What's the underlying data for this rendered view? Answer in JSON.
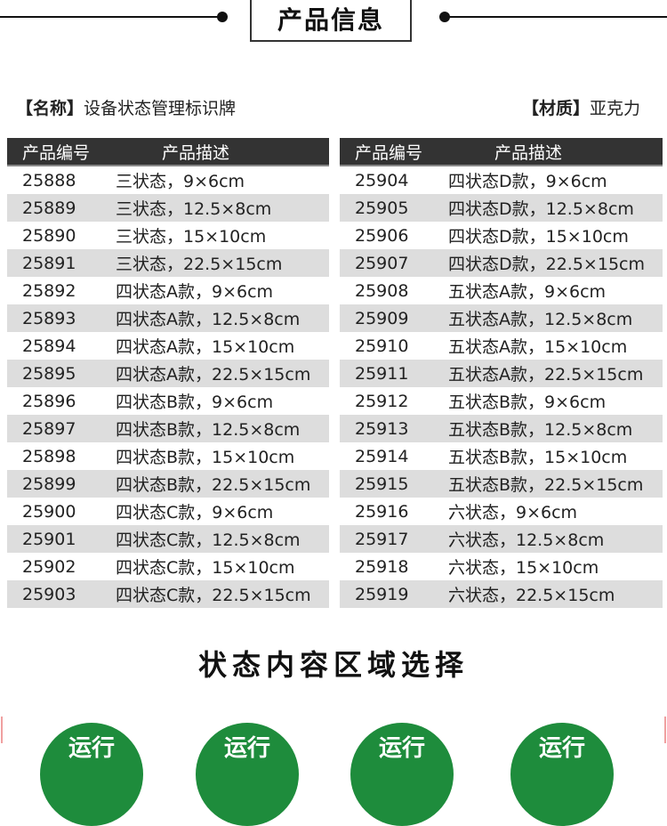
{
  "header": {
    "title": "产品信息"
  },
  "meta": {
    "name_label": "【名称】",
    "name_value": "设备状态管理标识牌",
    "material_label": "【材质】",
    "material_value": "亚克力"
  },
  "table": {
    "col_code": "产品编号",
    "col_desc": "产品描述",
    "left": [
      [
        "25888",
        "三状态，9×6cm"
      ],
      [
        "25889",
        "三状态，12.5×8cm"
      ],
      [
        "25890",
        "三状态，15×10cm"
      ],
      [
        "25891",
        "三状态，22.5×15cm"
      ],
      [
        "25892",
        "四状态A款，9×6cm"
      ],
      [
        "25893",
        "四状态A款，12.5×8cm"
      ],
      [
        "25894",
        "四状态A款，15×10cm"
      ],
      [
        "25895",
        "四状态A款，22.5×15cm"
      ],
      [
        "25896",
        "四状态B款，9×6cm"
      ],
      [
        "25897",
        "四状态B款，12.5×8cm"
      ],
      [
        "25898",
        "四状态B款，15×10cm"
      ],
      [
        "25899",
        "四状态B款，22.5×15cm"
      ],
      [
        "25900",
        "四状态C款，9×6cm"
      ],
      [
        "25901",
        "四状态C款，12.5×8cm"
      ],
      [
        "25902",
        "四状态C款，15×10cm"
      ],
      [
        "25903",
        "四状态C款，22.5×15cm"
      ]
    ],
    "right": [
      [
        "25904",
        "四状态D款，9×6cm"
      ],
      [
        "25905",
        "四状态D款，12.5×8cm"
      ],
      [
        "25906",
        "四状态D款，15×10cm"
      ],
      [
        "25907",
        "四状态D款，22.5×15cm"
      ],
      [
        "25908",
        "五状态A款，9×6cm"
      ],
      [
        "25909",
        "五状态A款，12.5×8cm"
      ],
      [
        "25910",
        "五状态A款，15×10cm"
      ],
      [
        "25911",
        "五状态A款，22.5×15cm"
      ],
      [
        "25912",
        "五状态B款，9×6cm"
      ],
      [
        "25913",
        "五状态B款，12.5×8cm"
      ],
      [
        "25914",
        "五状态B款，15×10cm"
      ],
      [
        "25915",
        "五状态B款，22.5×15cm"
      ],
      [
        "25916",
        "六状态，9×6cm"
      ],
      [
        "25917",
        "六状态，12.5×8cm"
      ],
      [
        "25918",
        "六状态，15×10cm"
      ],
      [
        "25919",
        "六状态，22.5×15cm"
      ]
    ]
  },
  "section": {
    "title": "状态内容区域选择"
  },
  "badges": [
    "运行",
    "运行",
    "运行",
    "运行"
  ],
  "colors": {
    "header_bg": "#333333",
    "stripe": "#dddddd",
    "badge_green": "#1e8c3c"
  }
}
